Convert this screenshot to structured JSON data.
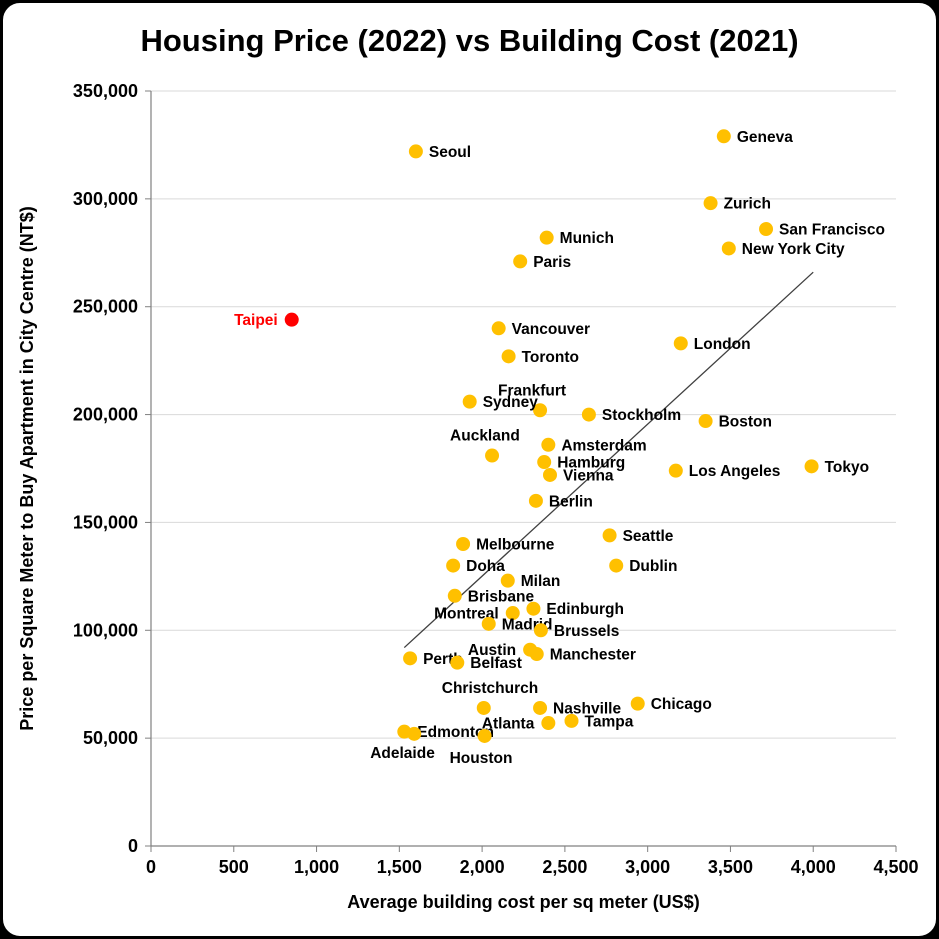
{
  "chart_data": {
    "type": "scatter",
    "title": "Housing Price (2022) vs Building Cost (2021)",
    "xlabel": "Average building cost per sq meter (US$)",
    "ylabel": "Price per Square Meter to Buy Apartment in City Centre (NT$)",
    "xlim": [
      0,
      4500
    ],
    "ylim": [
      0,
      350000
    ],
    "x_ticks": [
      "0",
      "500",
      "1,000",
      "1,500",
      "2,000",
      "2,500",
      "3,000",
      "3,500",
      "4,000",
      "4,500"
    ],
    "y_ticks": [
      "0",
      "50,000",
      "100,000",
      "150,000",
      "200,000",
      "250,000",
      "300,000",
      "350,000"
    ],
    "grid": "horizontal",
    "legend": "none",
    "colors": {
      "point": "#FFC000",
      "highlight": "#FF0000",
      "grid": "#D9D9D9",
      "axis": "#808080",
      "trendline": "#404040"
    },
    "trendline": {
      "x1": 1530,
      "y1": 92000,
      "x2": 4000,
      "y2": 266000
    },
    "points": [
      {
        "city": "Seoul",
        "x": 1600,
        "y": 322000,
        "label_pos": "right"
      },
      {
        "city": "Geneva",
        "x": 3460,
        "y": 329000,
        "label_pos": "right"
      },
      {
        "city": "Zurich",
        "x": 3380,
        "y": 298000,
        "label_pos": "right"
      },
      {
        "city": "San Francisco",
        "x": 3715,
        "y": 286000,
        "label_pos": "right"
      },
      {
        "city": "New York City",
        "x": 3490,
        "y": 277000,
        "label_pos": "right"
      },
      {
        "city": "Munich",
        "x": 2390,
        "y": 282000,
        "label_pos": "right"
      },
      {
        "city": "Paris",
        "x": 2230,
        "y": 271000,
        "label_pos": "right"
      },
      {
        "city": "Taipei",
        "x": 850,
        "y": 244000,
        "label_pos": "left",
        "color": "#FF0000",
        "label_color": "#FF0000"
      },
      {
        "city": "Vancouver",
        "x": 2100,
        "y": 240000,
        "label_pos": "right"
      },
      {
        "city": "London",
        "x": 3200,
        "y": 233000,
        "label_pos": "right"
      },
      {
        "city": "Toronto",
        "x": 2160,
        "y": 227000,
        "label_pos": "right"
      },
      {
        "city": "Frankfurt",
        "x": 2350,
        "y": 202000,
        "label_pos": "above-left"
      },
      {
        "city": "Sydney",
        "x": 1925,
        "y": 206000,
        "label_pos": "right"
      },
      {
        "city": "Stockholm",
        "x": 2645,
        "y": 200000,
        "label_pos": "right"
      },
      {
        "city": "Boston",
        "x": 3350,
        "y": 197000,
        "label_pos": "right"
      },
      {
        "city": "Auckland",
        "x": 2060,
        "y": 181000,
        "label_pos": "above-left"
      },
      {
        "city": "Amsterdam",
        "x": 2400,
        "y": 186000,
        "label_pos": "right"
      },
      {
        "city": "Hamburg",
        "x": 2375,
        "y": 178000,
        "label_pos": "right"
      },
      {
        "city": "Vienna",
        "x": 2410,
        "y": 172000,
        "label_pos": "right"
      },
      {
        "city": "Los Angeles",
        "x": 3170,
        "y": 174000,
        "label_pos": "right"
      },
      {
        "city": "Tokyo",
        "x": 3990,
        "y": 176000,
        "label_pos": "right"
      },
      {
        "city": "Berlin",
        "x": 2325,
        "y": 160000,
        "label_pos": "right"
      },
      {
        "city": "Seattle",
        "x": 2770,
        "y": 144000,
        "label_pos": "right"
      },
      {
        "city": "Melbourne",
        "x": 1885,
        "y": 140000,
        "label_pos": "right"
      },
      {
        "city": "Doha",
        "x": 1825,
        "y": 130000,
        "label_pos": "right"
      },
      {
        "city": "Dublin",
        "x": 2810,
        "y": 130000,
        "label_pos": "right"
      },
      {
        "city": "Milan",
        "x": 2155,
        "y": 123000,
        "label_pos": "right"
      },
      {
        "city": "Brisbane",
        "x": 1835,
        "y": 116000,
        "label_pos": "right"
      },
      {
        "city": "Montreal",
        "x": 2185,
        "y": 108000,
        "label_pos": "left"
      },
      {
        "city": "Edinburgh",
        "x": 2310,
        "y": 110000,
        "label_pos": "right"
      },
      {
        "city": "Madrid",
        "x": 2040,
        "y": 103000,
        "label_pos": "right"
      },
      {
        "city": "Brussels",
        "x": 2355,
        "y": 100000,
        "label_pos": "right"
      },
      {
        "city": "Austin",
        "x": 2290,
        "y": 91000,
        "label_pos": "left"
      },
      {
        "city": "Manchester",
        "x": 2330,
        "y": 89000,
        "label_pos": "right"
      },
      {
        "city": "Perth",
        "x": 1565,
        "y": 87000,
        "label_pos": "right"
      },
      {
        "city": "Belfast",
        "x": 1850,
        "y": 85000,
        "label_pos": "right"
      },
      {
        "city": "Christchurch",
        "x": 2010,
        "y": 64000,
        "label_pos": "above-left"
      },
      {
        "city": "Nashville",
        "x": 2350,
        "y": 64000,
        "label_pos": "right"
      },
      {
        "city": "Chicago",
        "x": 2940,
        "y": 66000,
        "label_pos": "right"
      },
      {
        "city": "Tampa",
        "x": 2540,
        "y": 58000,
        "label_pos": "right"
      },
      {
        "city": "Edmonton",
        "x": 1530,
        "y": 53000,
        "label_pos": "right"
      },
      {
        "city": "Atlanta",
        "x": 2400,
        "y": 57000,
        "label_pos": "left"
      },
      {
        "city": "Adelaide",
        "x": 1590,
        "y": 52000,
        "label_pos": "below-left"
      },
      {
        "city": "Houston",
        "x": 2015,
        "y": 51000,
        "label_pos": "below"
      }
    ]
  }
}
